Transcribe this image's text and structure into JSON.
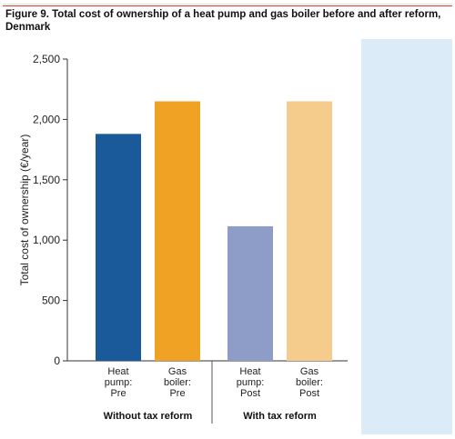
{
  "caption": "Figure 9. Total cost of ownership of a heat pump and gas boiler before and after reform, Denmark",
  "chart_data": {
    "type": "bar",
    "title": "Figure 9. Total cost of ownership of a heat pump and gas boiler before and after reform, Denmark",
    "xlabel": "",
    "ylabel": "Total cost of ownership (€/year)",
    "ylim": [
      0,
      2500
    ],
    "yticks": [
      0,
      500,
      1000,
      1500,
      2000,
      2500
    ],
    "ytick_labels": [
      "0",
      "500",
      "1,000",
      "1,500",
      "2,000",
      "2,500"
    ],
    "grid": false,
    "categories": [
      [
        "Heat",
        "pump:",
        "Pre"
      ],
      [
        "Gas",
        "boiler:",
        "Pre"
      ],
      [
        "Heat",
        "pump:",
        "Post"
      ],
      [
        "Gas",
        "boiler:",
        "Post"
      ]
    ],
    "values": [
      1880,
      2150,
      1115,
      2150
    ],
    "colors": [
      "#1a5a9a",
      "#f0a224",
      "#8e9dc8",
      "#f6cc8c"
    ],
    "groups": [
      {
        "label": "Without tax reform",
        "members": [
          0,
          1
        ]
      },
      {
        "label": "With tax reform",
        "members": [
          2,
          3
        ]
      }
    ]
  }
}
